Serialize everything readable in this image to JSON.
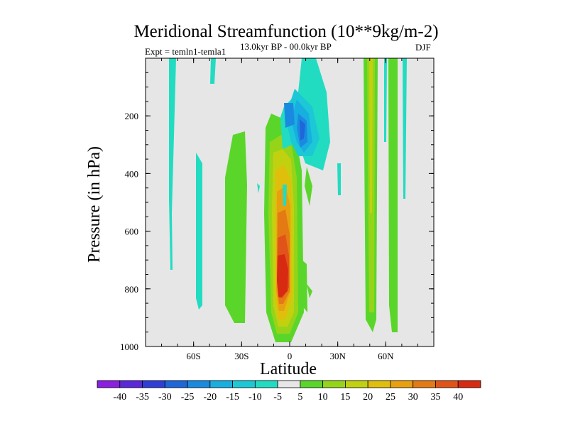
{
  "chart_data": {
    "type": "contour",
    "title": "Meridional Streamfunction (10**9kg/m-2)",
    "subtitle": "13.0kyr BP - 00.0kyr BP",
    "experiment": "Expt = temln1-temla1",
    "season": "DJF",
    "xlabel": "Latitude",
    "ylabel": "Pressure (in hPa)",
    "xlim": [
      -90,
      90
    ],
    "ylim": [
      1000,
      0
    ],
    "x_ticks": [
      {
        "value": -60,
        "label": "60S"
      },
      {
        "value": -30,
        "label": "30S"
      },
      {
        "value": 0,
        "label": "0"
      },
      {
        "value": 30,
        "label": "30N"
      },
      {
        "value": 60,
        "label": "60N"
      }
    ],
    "y_ticks": [
      {
        "value": 200,
        "label": "200"
      },
      {
        "value": 400,
        "label": "400"
      },
      {
        "value": 600,
        "label": "600"
      },
      {
        "value": 800,
        "label": "800"
      },
      {
        "value": 1000,
        "label": "1000"
      }
    ],
    "colorbar": {
      "levels": [
        -40,
        -35,
        -30,
        -25,
        -20,
        -15,
        -10,
        -5,
        5,
        10,
        15,
        20,
        25,
        30,
        35,
        40
      ],
      "labels": [
        "-40",
        "-35",
        "-30",
        "-25",
        "-20",
        "-15",
        "-10",
        "-5",
        "5",
        "10",
        "15",
        "20",
        "25",
        "30",
        "35",
        "40"
      ],
      "colors": [
        "#8a1fe0",
        "#5a28d8",
        "#2f3fd6",
        "#1f66d9",
        "#1a8ae0",
        "#19aee0",
        "#1cc8d6",
        "#22dcc2",
        "#e6e6e6",
        "#5ad62a",
        "#96d41a",
        "#c2d10f",
        "#e0be0c",
        "#e8a010",
        "#e47a14",
        "#e0541a",
        "#d82a12"
      ]
    },
    "regions": [
      {
        "level": "5",
        "desc": "SH midlatitude cell",
        "lat": [
          -40,
          -30
        ],
        "p": [
          250,
          940
        ]
      },
      {
        "level": "5",
        "desc": "equatorial cell outer",
        "lat": [
          -12,
          12
        ],
        "p": [
          230,
          980
        ]
      },
      {
        "level": "40",
        "desc": "equatorial cell max",
        "lat": [
          -6,
          0
        ],
        "p": [
          700,
          800
        ]
      },
      {
        "level": "-10",
        "desc": "upper tropical negative",
        "lat": [
          2,
          25
        ],
        "p": [
          0,
          380
        ]
      },
      {
        "level": "-25",
        "desc": "upper tropical core",
        "lat": [
          6,
          12
        ],
        "p": [
          200,
          260
        ]
      },
      {
        "level": "10",
        "desc": "NH 50N band",
        "lat": [
          48,
          55
        ],
        "p": [
          0,
          940
        ]
      },
      {
        "level": "5",
        "desc": "NH 62N band",
        "lat": [
          63,
          67
        ],
        "p": [
          0,
          940
        ]
      }
    ]
  },
  "colors": {
    "plot_bg": "#e6e6e6"
  }
}
